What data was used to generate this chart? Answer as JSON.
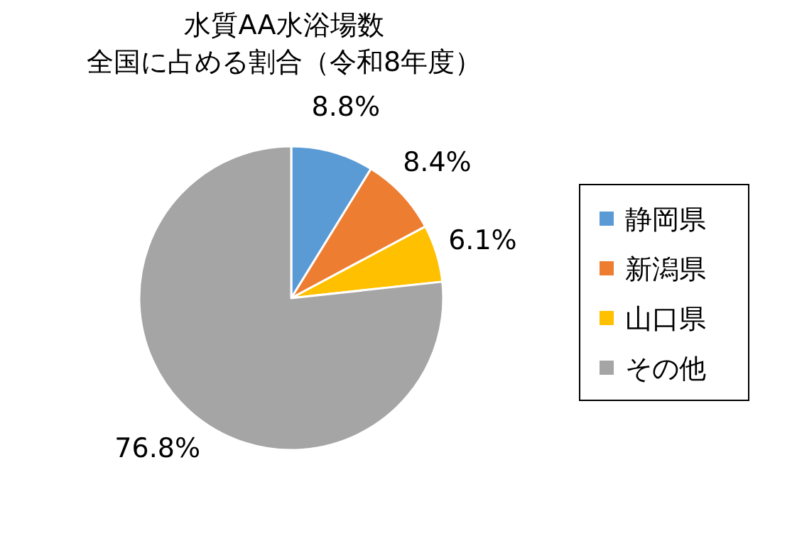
{
  "chart_data": {
    "type": "pie",
    "title": "水質AA水浴場数",
    "subtitle": "全国に占める割合（令和8年度）",
    "categories": [
      "静岡県",
      "新潟県",
      "山口県",
      "その他"
    ],
    "values": [
      8.8,
      8.4,
      6.1,
      76.8
    ],
    "value_labels": [
      "8.8%",
      "8.4%",
      "6.1%",
      "76.8%"
    ],
    "colors": [
      "#5b9bd5",
      "#ed7d31",
      "#ffc000",
      "#a5a5a5"
    ],
    "legend": "right"
  }
}
